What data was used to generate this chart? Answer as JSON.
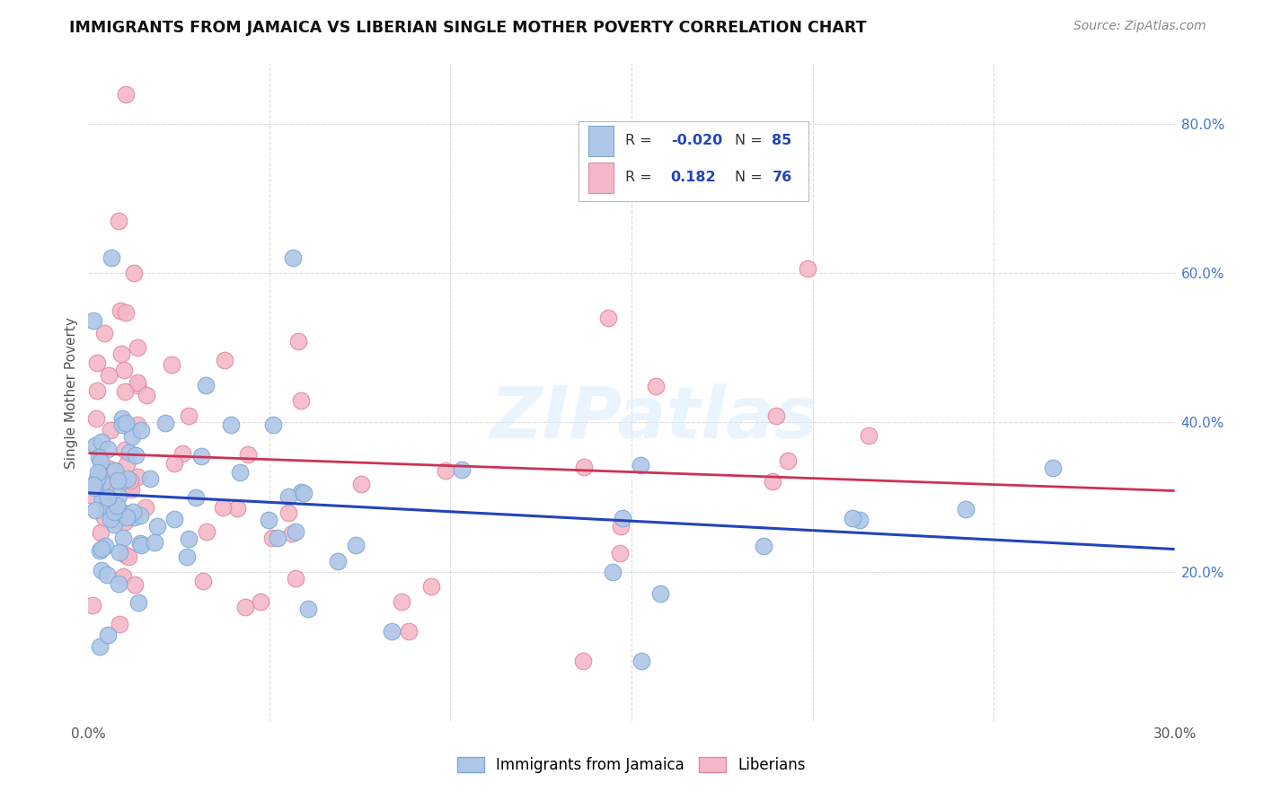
{
  "title": "IMMIGRANTS FROM JAMAICA VS LIBERIAN SINGLE MOTHER POVERTY CORRELATION CHART",
  "source": "Source: ZipAtlas.com",
  "ylabel": "Single Mother Poverty",
  "watermark": "ZIPatlas",
  "xlim": [
    0.0,
    0.3
  ],
  "ylim": [
    0.0,
    0.88
  ],
  "xtick_positions": [
    0.0,
    0.05,
    0.1,
    0.15,
    0.2,
    0.25,
    0.3
  ],
  "xtick_labels": [
    "0.0%",
    "",
    "",
    "",
    "",
    "",
    "30.0%"
  ],
  "yticks_right": [
    0.2,
    0.4,
    0.6,
    0.8
  ],
  "ytick_labels_right": [
    "20.0%",
    "40.0%",
    "60.0%",
    "80.0%"
  ],
  "series1_color": "#aec6e8",
  "series1_edge": "#7fa8d4",
  "series2_color": "#f4b8c8",
  "series2_edge": "#e08aa0",
  "line1_color": "#2244bb",
  "line2_color": "#cc3355",
  "R1": -0.02,
  "N1": 85,
  "R2": 0.182,
  "N2": 76,
  "legend_label1": "Immigrants from Jamaica",
  "legend_label2": "Liberians",
  "background_color": "#ffffff",
  "grid_color": "#cccccc",
  "legend_R_color": "#2244bb",
  "legend_box_color": "#dddddd"
}
